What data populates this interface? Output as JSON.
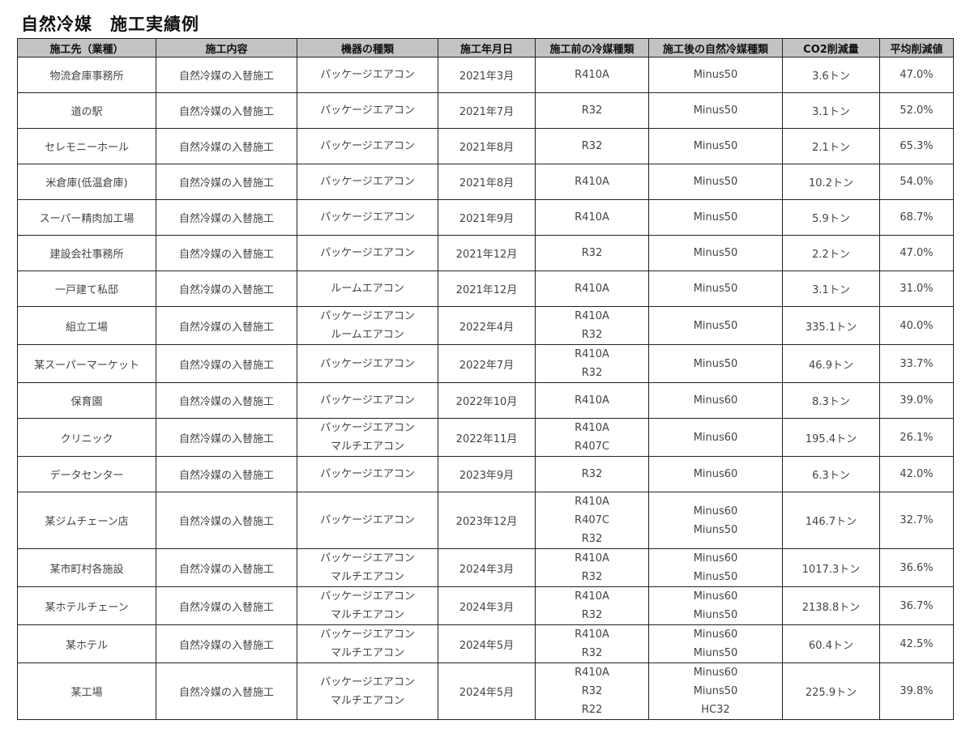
{
  "title": "自然冷媒　施工実績例",
  "colors": {
    "header_bg": "#c3c3c3",
    "border": "#222222",
    "text": "#444444"
  },
  "columns": [
    "施工先（業種）",
    "施工内容",
    "機器の種類",
    "施工年月日",
    "施工前の冷媒種類",
    "施工後の自然冷媒種類",
    "CO2削減量",
    "平均削減値"
  ],
  "rows": [
    {
      "site": "物流倉庫事務所",
      "work": "自然冷媒の入替施工",
      "equipment": [
        "パッケージエアコン"
      ],
      "date": "2021年3月",
      "before": [
        "R410A"
      ],
      "after": [
        "Minus50"
      ],
      "co2": "3.6トン",
      "avg": "47.0%"
    },
    {
      "site": "道の駅",
      "work": "自然冷媒の入替施工",
      "equipment": [
        "パッケージエアコン"
      ],
      "date": "2021年7月",
      "before": [
        "R32"
      ],
      "after": [
        "Minus50"
      ],
      "co2": "3.1トン",
      "avg": "52.0%"
    },
    {
      "site": "セレモニーホール",
      "work": "自然冷媒の入替施工",
      "equipment": [
        "パッケージエアコン"
      ],
      "date": "2021年8月",
      "before": [
        "R32"
      ],
      "after": [
        "Minus50"
      ],
      "co2": "2.1トン",
      "avg": "65.3%"
    },
    {
      "site": "米倉庫(低温倉庫)",
      "work": "自然冷媒の入替施工",
      "equipment": [
        "パッケージエアコン"
      ],
      "date": "2021年8月",
      "before": [
        "R410A"
      ],
      "after": [
        "Minus50"
      ],
      "co2": "10.2トン",
      "avg": "54.0%"
    },
    {
      "site": "スーパー精肉加工場",
      "work": "自然冷媒の入替施工",
      "equipment": [
        "パッケージエアコン"
      ],
      "date": "2021年9月",
      "before": [
        "R410A"
      ],
      "after": [
        "Minus50"
      ],
      "co2": "5.9トン",
      "avg": "68.7%"
    },
    {
      "site": "建設会社事務所",
      "work": "自然冷媒の入替施工",
      "equipment": [
        "パッケージエアコン"
      ],
      "date": "2021年12月",
      "before": [
        "R32"
      ],
      "after": [
        "Minus50"
      ],
      "co2": "2.2トン",
      "avg": "47.0%"
    },
    {
      "site": "一戸建て私邸",
      "work": "自然冷媒の入替施工",
      "equipment": [
        "ルームエアコン"
      ],
      "date": "2021年12月",
      "before": [
        "R410A"
      ],
      "after": [
        "Minus50"
      ],
      "co2": "3.1トン",
      "avg": "31.0%"
    },
    {
      "site": "組立工場",
      "work": "自然冷媒の入替施工",
      "equipment": [
        "パッケージエアコン",
        "ルームエアコン"
      ],
      "date": "2022年4月",
      "before": [
        "R410A",
        "R32"
      ],
      "after": [
        "Minus50"
      ],
      "co2": "335.1トン",
      "avg": "40.0%"
    },
    {
      "site": "某スーパーマーケット",
      "work": "自然冷媒の入替施工",
      "equipment": [
        "パッケージエアコン"
      ],
      "date": "2022年7月",
      "before": [
        "R410A",
        "R32"
      ],
      "after": [
        "Minus50"
      ],
      "co2": "46.9トン",
      "avg": "33.7%"
    },
    {
      "site": "保育園",
      "work": "自然冷媒の入替施工",
      "equipment": [
        "パッケージエアコン"
      ],
      "date": "2022年10月",
      "before": [
        "R410A"
      ],
      "after": [
        "Minus60"
      ],
      "co2": "8.3トン",
      "avg": "39.0%"
    },
    {
      "site": "クリニック",
      "work": "自然冷媒の入替施工",
      "equipment": [
        "パッケージエアコン",
        "マルチエアコン"
      ],
      "date": "2022年11月",
      "before": [
        "R410A",
        "R407C"
      ],
      "after": [
        "Minus60"
      ],
      "co2": "195.4トン",
      "avg": "26.1%"
    },
    {
      "site": "データセンター",
      "work": "自然冷媒の入替施工",
      "equipment": [
        "パッケージエアコン"
      ],
      "date": "2023年9月",
      "before": [
        "R32"
      ],
      "after": [
        "Minus60"
      ],
      "co2": "6.3トン",
      "avg": "42.0%"
    },
    {
      "site": "某ジムチェーン店",
      "work": "自然冷媒の入替施工",
      "equipment": [
        "パッケージエアコン"
      ],
      "date": "2023年12月",
      "before": [
        "R410A",
        "R407C",
        "R32"
      ],
      "after": [
        "Minus60",
        "Miuns50"
      ],
      "co2": "146.7トン",
      "avg": "32.7%"
    },
    {
      "site": "某市町村各施設",
      "work": "自然冷媒の入替施工",
      "equipment": [
        "パッケージエアコン",
        "マルチエアコン"
      ],
      "date": "2024年3月",
      "before": [
        "R410A",
        "R32"
      ],
      "after": [
        "Minus60",
        "Minus50"
      ],
      "co2": "1017.3トン",
      "avg": "36.6%"
    },
    {
      "site": "某ホテルチェーン",
      "work": "自然冷媒の入替施工",
      "equipment": [
        "パッケージエアコン",
        "マルチエアコン"
      ],
      "date": "2024年3月",
      "before": [
        "R410A",
        "R32"
      ],
      "after": [
        "Minus60",
        "Miuns50"
      ],
      "co2": "2138.8トン",
      "avg": "36.7%"
    },
    {
      "site": "某ホテル",
      "work": "自然冷媒の入替施工",
      "equipment": [
        "パッケージエアコン",
        "マルチエアコン"
      ],
      "date": "2024年5月",
      "before": [
        "R410A",
        "R32"
      ],
      "after": [
        "Minus60",
        "Miuns50"
      ],
      "co2": "60.4トン",
      "avg": "42.5%"
    },
    {
      "site": "某工場",
      "work": "自然冷媒の入替施工",
      "equipment": [
        "パッケージエアコン",
        "マルチエアコン"
      ],
      "date": "2024年5月",
      "before": [
        "R410A",
        "R32",
        "R22"
      ],
      "after": [
        "Minus60",
        "Miuns50",
        "HC32"
      ],
      "co2": "225.9トン",
      "avg": "39.8%"
    }
  ]
}
